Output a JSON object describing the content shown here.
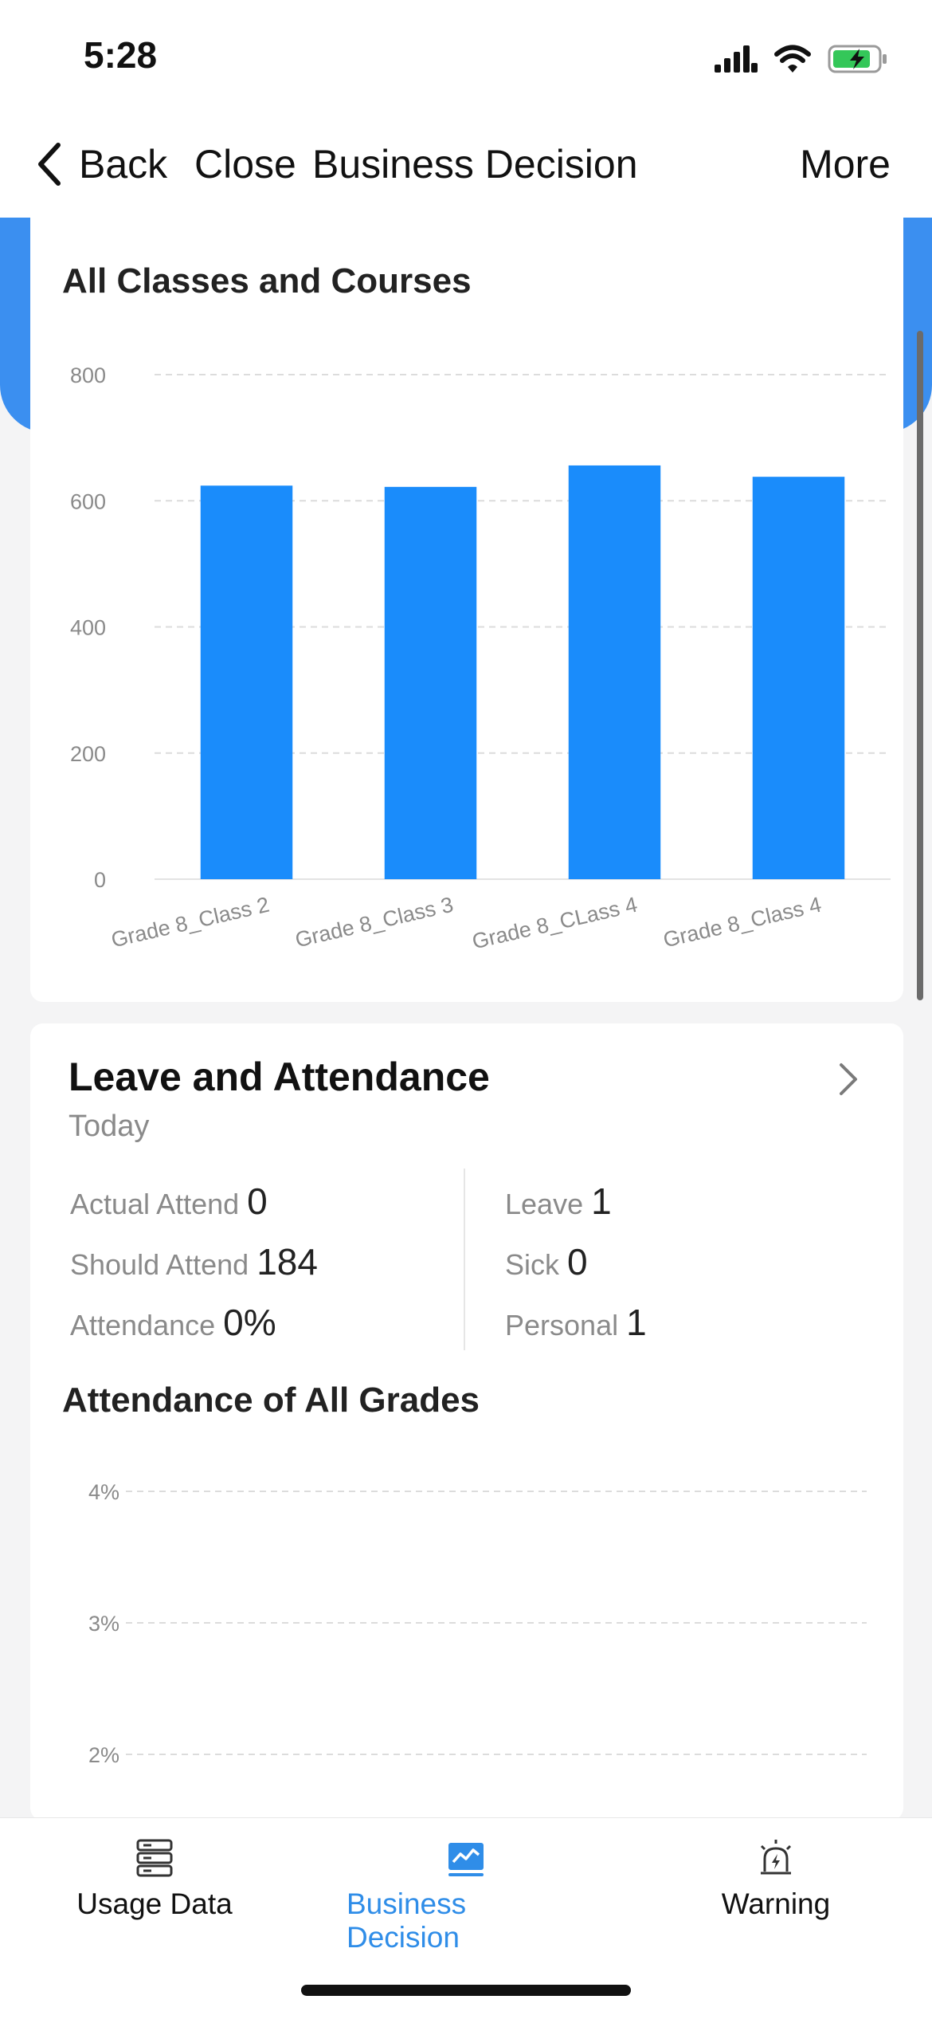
{
  "status_bar": {
    "time": "5:28"
  },
  "nav": {
    "back_label": "Back",
    "close_label": "Close",
    "title": "Business Decision",
    "more_label": "More"
  },
  "classes_chart": {
    "title": "All Classes and Courses",
    "chart_data": {
      "type": "bar",
      "categories": [
        "Grade 8_Class 2",
        "Grade 8_Class 3",
        "Grade 8_CLass 4",
        "Grade 8_Class 4"
      ],
      "values": [
        624,
        622,
        656,
        638
      ],
      "ylim": [
        0,
        800
      ],
      "yticks": [
        "0",
        "200",
        "400",
        "600",
        "800"
      ],
      "color": "#1a8cfb",
      "grid": true
    }
  },
  "leave_attendance": {
    "title": "Leave and Attendance",
    "subtitle": "Today",
    "left_stats": [
      {
        "label": "Actual Attend",
        "value": "0"
      },
      {
        "label": "Should Attend",
        "value": "184"
      },
      {
        "label": "Attendance",
        "value": "0%"
      }
    ],
    "right_stats": [
      {
        "label": "Leave",
        "value": "1"
      },
      {
        "label": "Sick",
        "value": "0"
      },
      {
        "label": "Personal",
        "value": "1"
      }
    ]
  },
  "grades_chart": {
    "title": "Attendance of All Grades",
    "chart_data": {
      "type": "bar",
      "categories": [],
      "values": [],
      "yticks": [
        "2%",
        "3%",
        "4%"
      ],
      "grid": true
    }
  },
  "tabs": [
    {
      "label": "Usage Data",
      "icon": "server-icon"
    },
    {
      "label": "Business Decision",
      "icon": "chart-icon"
    },
    {
      "label": "Warning",
      "icon": "alarm-icon"
    }
  ],
  "colors": {
    "accent": "#2f8de8",
    "bar": "#1a8cfb",
    "header_blue": "#3b8ff0"
  }
}
